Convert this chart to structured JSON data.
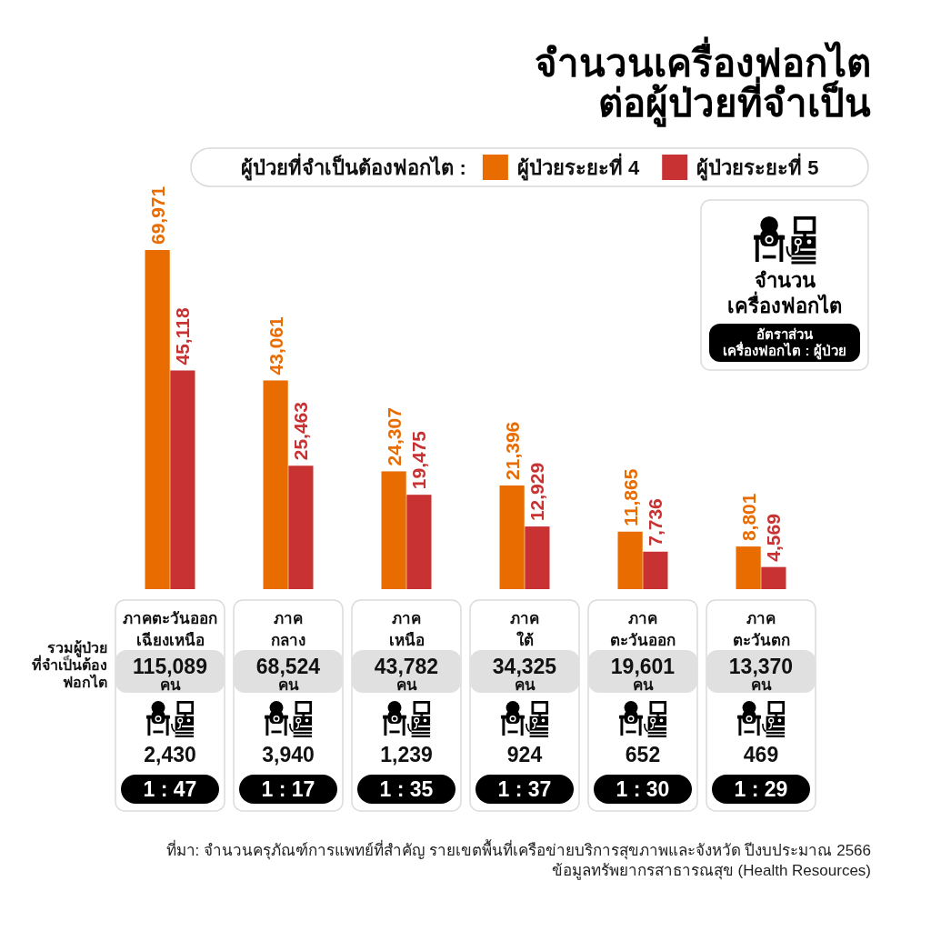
{
  "chart_data": [
    {
      "type": "bar",
      "title": "จำนวนเครื่องฟอกไต\nต่อผู้ป่วยที่จำเป็น",
      "legend_title": "ผู้ป่วยที่จำเป็นต้องฟอกไต :",
      "legend": "top",
      "categories": [
        "ภาคตะวันออก\nเฉียงเหนือ",
        "ภาค\nกลาง",
        "ภาค\nเหนือ",
        "ภาค\nใต้",
        "ภาค\nตะวันออก",
        "ภาค\nตะวันตก"
      ],
      "series": [
        {
          "name": "ผู้ป่วยระยะที่ 4",
          "color": "#e96c00",
          "values": [
            69971,
            43061,
            24307,
            21396,
            11865,
            8801
          ],
          "value_labels": [
            "69,971",
            "43,061",
            "24,307",
            "21,396",
            "11,865",
            "8,801"
          ]
        },
        {
          "name": "ผู้ป่วยระยะที่ 5",
          "color": "#c83232",
          "values": [
            45118,
            25463,
            19475,
            12929,
            7736,
            4569
          ],
          "value_labels": [
            "45,118",
            "25,463",
            "19,475",
            "12,929",
            "7,736",
            "4,569"
          ]
        }
      ],
      "annotations": [
        "ที่มา: จำนวนครุภัณฑ์การแพทย์ที่สำคัญ รายเขตพื้นที่เครือข่ายบริการสุขภาพและจังหวัด ปีงบประมาณ 2566\nข้อมูลทรัพยากรสาธารณสุข (Health Resources)"
      ]
    },
    {
      "type": "other",
      "annotations": [
        "จำนวน\nเครื่องฟอกไต",
        "อัตราส่วน\nเครื่องฟอกไต : ผู้ป่วย",
        "รวมผู้ป่วย\nที่จำเป็นต้อง\nฟอกไต",
        "115,089\nคน",
        "2,430",
        "1 : 47",
        "68,524\nคน",
        "3,940",
        "1 : 17",
        "43,782\nคน",
        "1,239",
        "1 : 35",
        "34,325\nคน",
        "924",
        "1 : 37",
        "19,601\nคน",
        "652",
        "1 : 30",
        "13,370\nคน",
        "469",
        "1 : 29"
      ]
    }
  ]
}
